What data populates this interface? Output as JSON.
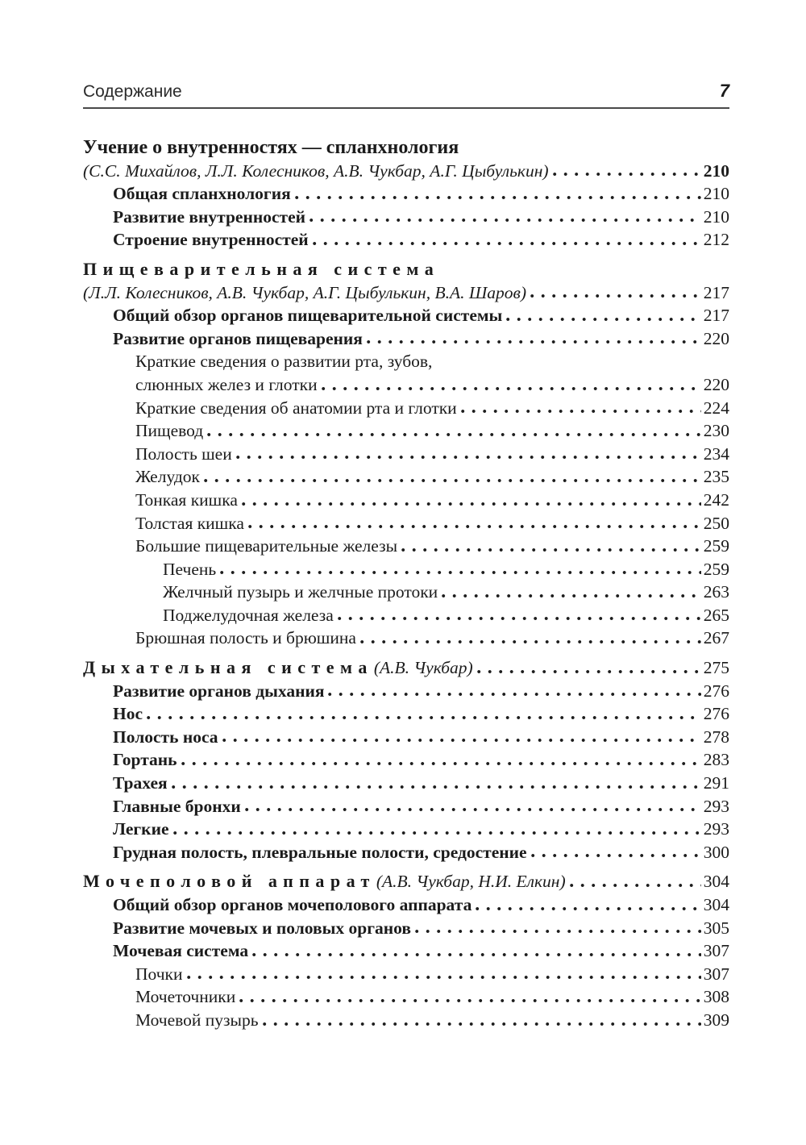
{
  "header": {
    "running_title": "Содержание",
    "page_number": "7"
  },
  "toc": {
    "entries": [
      {
        "label": "Учение о внутренностях — спланхнология",
        "style": "heading",
        "indent": 0,
        "page": null,
        "gap_before": true
      },
      {
        "label": "(С.С. Михайлов, Л.Л. Колесников, А.В. Чукбар, А.Г. Цыбулькин)",
        "style": "italic",
        "indent": 0,
        "page": "210",
        "page_bold": true
      },
      {
        "label": "Общая спланхнология",
        "style": "bold",
        "indent": 1,
        "page": "210"
      },
      {
        "label": "Развитие внутренностей",
        "style": "bold",
        "indent": 1,
        "page": "210"
      },
      {
        "label": "Строение внутренностей",
        "style": "bold",
        "indent": 1,
        "page": "212"
      },
      {
        "label": "Пищеварительная система",
        "style": "spaced",
        "indent": 0,
        "page": null,
        "gap_before": true
      },
      {
        "label": "(Л.Л. Колесников, А.В. Чукбар, А.Г. Цыбулькин, В.А. Шаров)",
        "style": "italic",
        "indent": 0,
        "page": "217"
      },
      {
        "label": "Общий обзор органов пищеварительной системы",
        "style": "bold",
        "indent": 1,
        "page": "217"
      },
      {
        "label": "Развитие органов пищеварения",
        "style": "bold",
        "indent": 1,
        "page": "220"
      },
      {
        "label": "Краткие сведения о развитии рта, зубов,",
        "style": "regular",
        "indent": 2,
        "page": null
      },
      {
        "label": "слюнных желез и глотки",
        "style": "regular",
        "indent": 2,
        "page": "220"
      },
      {
        "label": "Краткие сведения об анатомии рта и глотки",
        "style": "regular",
        "indent": 2,
        "page": "224"
      },
      {
        "label": "Пищевод",
        "style": "regular",
        "indent": 2,
        "page": "230"
      },
      {
        "label": "Полость шеи",
        "style": "regular",
        "indent": 2,
        "page": "234"
      },
      {
        "label": "Желудок",
        "style": "regular",
        "indent": 2,
        "page": "235"
      },
      {
        "label": "Тонкая кишка",
        "style": "regular",
        "indent": 2,
        "page": "242"
      },
      {
        "label": "Толстая кишка",
        "style": "regular",
        "indent": 2,
        "page": "250"
      },
      {
        "label": "Большие пищеварительные железы",
        "style": "regular",
        "indent": 2,
        "page": "259"
      },
      {
        "label": "Печень",
        "style": "regular",
        "indent": 3,
        "page": "259"
      },
      {
        "label": "Желчный пузырь и желчные протоки",
        "style": "regular",
        "indent": 3,
        "page": "263"
      },
      {
        "label": "Поджелудочная железа",
        "style": "regular",
        "indent": 3,
        "page": "265"
      },
      {
        "label": "Брюшная полость и брюшина",
        "style": "regular",
        "indent": 2,
        "page": "267"
      },
      {
        "label": "Дыхательная система",
        "style": "spaced",
        "indent": 0,
        "authors": "(А.В. Чукбар)",
        "page": "275",
        "gap_before": true
      },
      {
        "label": "Развитие органов дыхания",
        "style": "bold",
        "indent": 1,
        "page": "276"
      },
      {
        "label": "Нос",
        "style": "bold",
        "indent": 1,
        "page": "276"
      },
      {
        "label": "Полость носа",
        "style": "bold",
        "indent": 1,
        "page": "278"
      },
      {
        "label": "Гортань",
        "style": "bold",
        "indent": 1,
        "page": "283"
      },
      {
        "label": "Трахея",
        "style": "bold",
        "indent": 1,
        "page": "291"
      },
      {
        "label": "Главные бронхи",
        "style": "bold",
        "indent": 1,
        "page": "293"
      },
      {
        "label": "Легкие",
        "style": "bold",
        "indent": 1,
        "page": "293"
      },
      {
        "label": "Грудная полость, плевральные полости, средостение",
        "style": "bold",
        "indent": 1,
        "page": "300"
      },
      {
        "label": "Мочеполовой аппарат",
        "style": "spaced",
        "indent": 0,
        "authors": "(А.В. Чукбар, Н.И. Елкин)",
        "page": "304",
        "gap_before": true
      },
      {
        "label": "Общий обзор органов мочеполового аппарата",
        "style": "bold",
        "indent": 1,
        "page": "304"
      },
      {
        "label": "Развитие мочевых и половых органов",
        "style": "bold",
        "indent": 1,
        "page": "305"
      },
      {
        "label": "Мочевая система",
        "style": "bold",
        "indent": 1,
        "page": "307"
      },
      {
        "label": "Почки",
        "style": "regular",
        "indent": 2,
        "page": "307"
      },
      {
        "label": "Мочеточники",
        "style": "regular",
        "indent": 2,
        "page": "308"
      },
      {
        "label": "Мочевой пузырь",
        "style": "regular",
        "indent": 2,
        "page": "309"
      }
    ]
  },
  "colors": {
    "text": "#1b1b1b",
    "rule": "#4a4a4a",
    "background": "#ffffff"
  }
}
